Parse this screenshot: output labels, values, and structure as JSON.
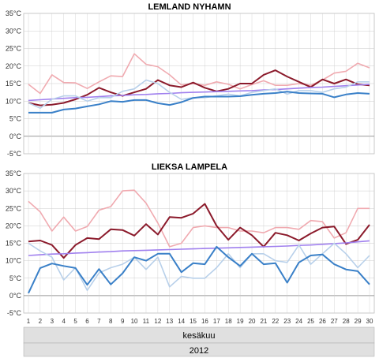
{
  "colors": {
    "tmax_obs": "#8b1a2b",
    "tmax_norm": "#f0aab0",
    "tmin_obs": "#3a80c8",
    "tmin_norm": "#b8d0ea",
    "mean_norm": "#a080ee",
    "grid": "#cccccc",
    "zero_line": "#999999",
    "band": "#e0e0e0"
  },
  "x_axis": {
    "days": [
      1,
      2,
      3,
      4,
      5,
      6,
      7,
      8,
      9,
      10,
      11,
      12,
      13,
      14,
      15,
      16,
      17,
      18,
      19,
      20,
      21,
      22,
      23,
      24,
      25,
      26,
      27,
      28,
      29,
      30
    ],
    "month_label": "kesäkuu",
    "year_label": "2012"
  },
  "chart_data": [
    {
      "type": "line",
      "title": "LEMLAND NYHAMN",
      "ylim": [
        -5,
        35
      ],
      "yticks": [
        "-5°C",
        "0°C",
        "5°C",
        "10°C",
        "15°C",
        "20°C",
        "25°C",
        "30°C",
        "35°C"
      ],
      "grid": true,
      "x": [
        1,
        2,
        3,
        4,
        5,
        6,
        7,
        8,
        9,
        10,
        11,
        12,
        13,
        14,
        15,
        16,
        17,
        18,
        19,
        20,
        21,
        22,
        23,
        24,
        25,
        26,
        27,
        28,
        29,
        30
      ],
      "series": [
        {
          "key": "tmax_norm",
          "values": [
            14.8,
            12.2,
            17.5,
            15.3,
            15.2,
            13.6,
            15.5,
            17.2,
            17.0,
            23.5,
            20.5,
            19.8,
            17.5,
            14.6,
            15.0,
            14.5,
            15.5,
            14.8,
            13.5,
            14.7,
            15.8,
            14.5,
            14.5,
            15.0,
            14.5,
            16.0,
            18.0,
            18.5,
            20.8,
            19.5
          ]
        },
        {
          "key": "tmax_obs",
          "values": [
            9.5,
            8.8,
            9.0,
            9.5,
            10.5,
            11.8,
            13.8,
            12.5,
            11.5,
            12.5,
            13.5,
            16.0,
            14.5,
            14.0,
            15.3,
            13.8,
            12.8,
            13.5,
            15.0,
            15.0,
            17.5,
            18.8,
            17.0,
            15.5,
            14.0,
            16.2,
            15.0,
            16.2,
            14.8,
            14.5
          ]
        },
        {
          "key": "mean_norm",
          "values": [
            10.2,
            10.4,
            10.6,
            10.8,
            11.0,
            11.1,
            11.3,
            11.5,
            11.6,
            11.8,
            11.9,
            12.1,
            12.2,
            12.4,
            12.5,
            12.6,
            12.7,
            12.8,
            12.9,
            13.0,
            13.2,
            13.3,
            13.5,
            13.7,
            13.9,
            14.0,
            14.2,
            14.4,
            14.6,
            14.8
          ]
        },
        {
          "key": "tmin_norm",
          "values": [
            9.5,
            8.0,
            10.5,
            11.5,
            11.5,
            10.0,
            11.0,
            11.0,
            12.8,
            13.5,
            16.0,
            15.0,
            12.5,
            10.5,
            11.0,
            11.0,
            11.5,
            12.0,
            11.5,
            12.5,
            13.0,
            13.5,
            12.0,
            13.0,
            13.0,
            12.5,
            13.5,
            14.0,
            15.5,
            15.5
          ]
        },
        {
          "key": "tmin_obs",
          "values": [
            6.7,
            6.7,
            6.7,
            7.6,
            7.9,
            8.5,
            9.1,
            10.0,
            9.8,
            10.3,
            10.3,
            9.4,
            8.9,
            9.7,
            10.9,
            11.3,
            11.3,
            11.3,
            11.4,
            11.8,
            12.1,
            12.3,
            12.7,
            12.3,
            12.2,
            12.1,
            11.1,
            11.9,
            12.3,
            12.1
          ]
        }
      ]
    },
    {
      "type": "line",
      "title": "LIEKSA LAMPELA",
      "ylim": [
        -5,
        35
      ],
      "yticks": [
        "-5°C",
        "0°C",
        "5°C",
        "10°C",
        "15°C",
        "20°C",
        "25°C",
        "30°C",
        "35°C"
      ],
      "grid": true,
      "x": [
        1,
        2,
        3,
        4,
        5,
        6,
        7,
        8,
        9,
        10,
        11,
        12,
        13,
        14,
        15,
        16,
        17,
        18,
        19,
        20,
        21,
        22,
        23,
        24,
        25,
        26,
        27,
        28,
        29,
        30
      ],
      "series": [
        {
          "key": "tmax_norm",
          "values": [
            27.0,
            24.0,
            18.5,
            22.5,
            18.5,
            19.8,
            24.5,
            25.5,
            30.0,
            30.2,
            26.5,
            20.8,
            14.0,
            15.0,
            19.5,
            20.0,
            19.5,
            19.5,
            18.5,
            18.5,
            18.0,
            19.5,
            19.5,
            19.0,
            21.5,
            21.2,
            16.5,
            18.0,
            25.0,
            25.0
          ]
        },
        {
          "key": "tmax_obs",
          "values": [
            15.5,
            15.8,
            14.5,
            10.8,
            14.5,
            16.5,
            16.2,
            19.0,
            18.8,
            17.2,
            20.5,
            17.5,
            22.5,
            22.3,
            23.5,
            26.3,
            20.0,
            16.0,
            19.5,
            17.3,
            14.0,
            18.0,
            17.3,
            15.8,
            17.8,
            19.5,
            19.8,
            14.8,
            16.0,
            20.3
          ]
        },
        {
          "key": "mean_norm",
          "values": [
            11.5,
            11.7,
            11.9,
            12.0,
            12.2,
            12.3,
            12.5,
            12.6,
            12.8,
            12.9,
            13.0,
            13.1,
            13.2,
            13.3,
            13.4,
            13.5,
            13.6,
            13.7,
            13.8,
            13.9,
            14.0,
            14.1,
            14.2,
            14.4,
            14.5,
            14.7,
            14.9,
            15.1,
            15.4,
            15.7
          ]
        },
        {
          "key": "tmin_norm",
          "values": [
            15.0,
            12.8,
            11.0,
            4.5,
            8.0,
            1.5,
            6.5,
            8.0,
            9.0,
            11.0,
            7.5,
            11.0,
            2.5,
            5.5,
            5.0,
            5.0,
            8.0,
            12.0,
            8.0,
            12.0,
            12.0,
            10.0,
            9.5,
            14.5,
            9.0,
            12.0,
            15.0,
            12.0,
            8.0,
            11.5
          ]
        },
        {
          "key": "tmin_obs",
          "values": [
            0.7,
            7.9,
            9.2,
            8.5,
            7.9,
            3.1,
            7.6,
            3.2,
            6.4,
            11.0,
            10.0,
            12.0,
            12.0,
            6.7,
            9.3,
            9.0,
            14.0,
            11.0,
            8.5,
            12.0,
            9.0,
            9.3,
            3.7,
            9.5,
            11.5,
            11.8,
            9.0,
            7.5,
            7.0,
            3.2
          ]
        }
      ]
    }
  ]
}
